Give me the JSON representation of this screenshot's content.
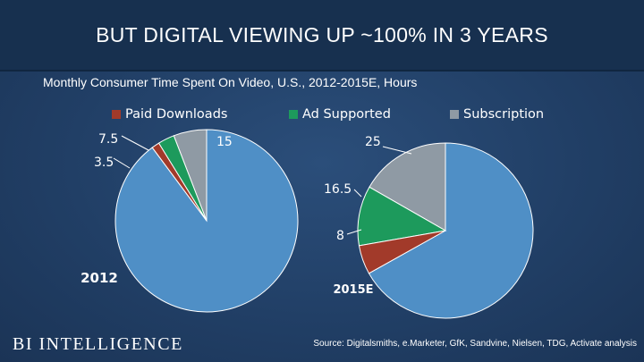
{
  "header": {
    "title": "BUT DIGITAL VIEWING UP ~100% IN 3 YEARS"
  },
  "chart_data": [
    {
      "type": "pie",
      "title": "Monthly Consumer Time Spent On Video, U.S., 2012-2015E, Hours",
      "label": "2012",
      "series": [
        "Paid Downloads",
        "Ad Supported",
        "Subscription"
      ],
      "slices": [
        {
          "name": "Paid Downloads",
          "value": 3.5
        },
        {
          "name": "Ad Supported",
          "value": 7.5
        },
        {
          "name": "Subscription",
          "value": 15
        }
      ],
      "remainder_value": 230,
      "legend": "top"
    },
    {
      "type": "pie",
      "label": "2015E",
      "slices": [
        {
          "name": "Paid Downloads",
          "value": 8
        },
        {
          "name": "Ad Supported",
          "value": 16.5
        },
        {
          "name": "Subscription",
          "value": 25
        }
      ],
      "remainder_value": 100,
      "legend": "top"
    }
  ],
  "colors": {
    "Paid Downloads": "#a23a2a",
    "Ad Supported": "#1d9a5c",
    "Subscription": "#8f9aa4",
    "remainder": "#4f8fc6",
    "leader": "#ffffff"
  },
  "footer": {
    "logo": "BI INTELLIGENCE",
    "source": "Source: Digitalsmiths, e.Marketer, GfK, Sandvine, Nielsen, TDG, Activate analysis"
  }
}
